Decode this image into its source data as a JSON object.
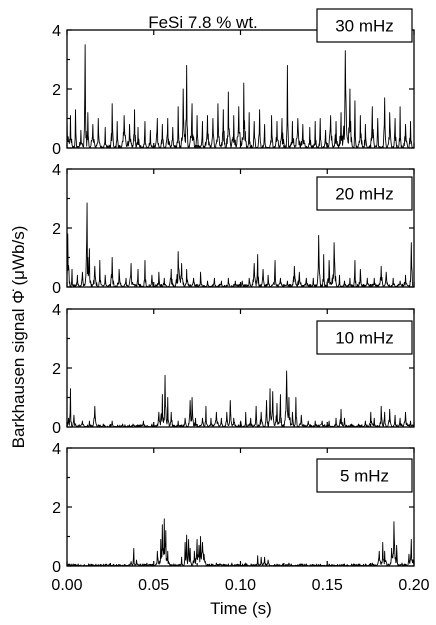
{
  "chart_data": {
    "type": "line",
    "title": "FeSi 7.8 % wt.",
    "xlabel": "Time (s)",
    "ylabel": "Barkhausen signal Φ̇ (μWb/s)",
    "xlim": [
      0.0,
      0.2
    ],
    "ylim": [
      0,
      4
    ],
    "x_ticks": [
      "0.00",
      "0.05",
      "0.10",
      "0.15",
      "0.20"
    ],
    "y_ticks": [
      "0",
      "2",
      "4"
    ],
    "grid": false,
    "panels": [
      {
        "label": "30 mHz",
        "bursts": [
          [
            0.0,
            1.0
          ],
          [
            0.002,
            1.1
          ],
          [
            0.005,
            1.3
          ],
          [
            0.008,
            0.6
          ],
          [
            0.0105,
            3.5
          ],
          [
            0.012,
            1.2
          ],
          [
            0.015,
            0.8
          ],
          [
            0.018,
            1.0
          ],
          [
            0.022,
            0.7
          ],
          [
            0.026,
            1.5
          ],
          [
            0.029,
            0.9
          ],
          [
            0.033,
            1.1
          ],
          [
            0.036,
            0.8
          ],
          [
            0.039,
            1.3
          ],
          [
            0.041,
            0.7
          ],
          [
            0.045,
            0.9
          ],
          [
            0.048,
            0.6
          ],
          [
            0.052,
            1.0
          ],
          [
            0.055,
            0.8
          ],
          [
            0.058,
            1.0
          ],
          [
            0.061,
            0.7
          ],
          [
            0.064,
            1.4
          ],
          [
            0.067,
            2.0
          ],
          [
            0.069,
            2.8
          ],
          [
            0.072,
            1.5
          ],
          [
            0.075,
            1.1
          ],
          [
            0.078,
            0.9
          ],
          [
            0.081,
            1.1
          ],
          [
            0.084,
            1.0
          ],
          [
            0.087,
            1.5
          ],
          [
            0.09,
            1.3
          ],
          [
            0.093,
            1.9
          ],
          [
            0.096,
            1.1
          ],
          [
            0.099,
            1.4
          ],
          [
            0.102,
            2.2
          ],
          [
            0.105,
            1.2
          ],
          [
            0.108,
            0.9
          ],
          [
            0.111,
            1.3
          ],
          [
            0.114,
            0.8
          ],
          [
            0.118,
            1.1
          ],
          [
            0.121,
            0.9
          ],
          [
            0.124,
            1.0
          ],
          [
            0.127,
            2.8
          ],
          [
            0.13,
            0.9
          ],
          [
            0.133,
            1.0
          ],
          [
            0.136,
            0.8
          ],
          [
            0.14,
            0.7
          ],
          [
            0.143,
            0.9
          ],
          [
            0.146,
            1.0
          ],
          [
            0.149,
            0.6
          ],
          [
            0.152,
            1.1
          ],
          [
            0.155,
            0.9
          ],
          [
            0.158,
            1.2
          ],
          [
            0.1605,
            3.3
          ],
          [
            0.163,
            2.0
          ],
          [
            0.166,
            1.6
          ],
          [
            0.169,
            1.1
          ],
          [
            0.172,
            0.8
          ],
          [
            0.176,
            1.4
          ],
          [
            0.179,
            1.0
          ],
          [
            0.183,
            1.7
          ],
          [
            0.186,
            1.2
          ],
          [
            0.189,
            1.0
          ],
          [
            0.192,
            1.4
          ],
          [
            0.195,
            0.8
          ],
          [
            0.198,
            0.9
          ]
        ]
      },
      {
        "label": "20 mHz",
        "bursts": [
          [
            0.0005,
            1.8
          ],
          [
            0.003,
            0.6
          ],
          [
            0.006,
            0.4
          ],
          [
            0.009,
            0.5
          ],
          [
            0.0115,
            2.85
          ],
          [
            0.013,
            1.3
          ],
          [
            0.016,
            0.7
          ],
          [
            0.019,
            0.9
          ],
          [
            0.022,
            0.4
          ],
          [
            0.026,
            1.0
          ],
          [
            0.03,
            0.6
          ],
          [
            0.034,
            0.3
          ],
          [
            0.037,
            0.8
          ],
          [
            0.041,
            0.6
          ],
          [
            0.045,
            0.9
          ],
          [
            0.049,
            0.4
          ],
          [
            0.053,
            0.5
          ],
          [
            0.056,
            0.3
          ],
          [
            0.06,
            0.6
          ],
          [
            0.064,
            1.2
          ],
          [
            0.066,
            0.8
          ],
          [
            0.069,
            0.6
          ],
          [
            0.073,
            0.3
          ],
          [
            0.077,
            0.5
          ],
          [
            0.081,
            0.2
          ],
          [
            0.085,
            0.3
          ],
          [
            0.089,
            0.2
          ],
          [
            0.093,
            0.3
          ],
          [
            0.097,
            0.2
          ],
          [
            0.101,
            0.2
          ],
          [
            0.105,
            0.3
          ],
          [
            0.108,
            0.8
          ],
          [
            0.11,
            1.1
          ],
          [
            0.113,
            0.6
          ],
          [
            0.116,
            0.4
          ],
          [
            0.12,
            0.9
          ],
          [
            0.123,
            0.3
          ],
          [
            0.127,
            0.2
          ],
          [
            0.131,
            0.7
          ],
          [
            0.134,
            0.5
          ],
          [
            0.138,
            0.3
          ],
          [
            0.142,
            0.3
          ],
          [
            0.145,
            1.75
          ],
          [
            0.148,
            1.1
          ],
          [
            0.151,
            0.9
          ],
          [
            0.154,
            1.5
          ],
          [
            0.157,
            0.4
          ],
          [
            0.16,
            0.2
          ],
          [
            0.163,
            0.3
          ],
          [
            0.166,
            0.9
          ],
          [
            0.169,
            0.6
          ],
          [
            0.173,
            0.3
          ],
          [
            0.177,
            0.3
          ],
          [
            0.181,
            0.7
          ],
          [
            0.184,
            0.5
          ],
          [
            0.188,
            0.3
          ],
          [
            0.192,
            0.2
          ],
          [
            0.195,
            0.4
          ],
          [
            0.1985,
            1.5
          ]
        ]
      },
      {
        "label": "10 mHz",
        "bursts": [
          [
            0.001,
            0.3
          ],
          [
            0.002,
            1.3
          ],
          [
            0.004,
            0.4
          ],
          [
            0.009,
            0.2
          ],
          [
            0.013,
            0.2
          ],
          [
            0.016,
            0.7
          ],
          [
            0.021,
            0.1
          ],
          [
            0.026,
            0.2
          ],
          [
            0.032,
            0.1
          ],
          [
            0.038,
            0.1
          ],
          [
            0.044,
            0.2
          ],
          [
            0.049,
            0.1
          ],
          [
            0.053,
            0.5
          ],
          [
            0.055,
            1.1
          ],
          [
            0.0565,
            1.75
          ],
          [
            0.058,
            1.0
          ],
          [
            0.06,
            0.5
          ],
          [
            0.064,
            0.2
          ],
          [
            0.068,
            0.3
          ],
          [
            0.071,
            0.9
          ],
          [
            0.072,
            1.0
          ],
          [
            0.074,
            0.3
          ],
          [
            0.078,
            0.3
          ],
          [
            0.08,
            0.7
          ],
          [
            0.083,
            0.3
          ],
          [
            0.086,
            0.5
          ],
          [
            0.089,
            0.3
          ],
          [
            0.092,
            0.5
          ],
          [
            0.094,
            0.9
          ],
          [
            0.096,
            0.3
          ],
          [
            0.1,
            0.2
          ],
          [
            0.103,
            0.5
          ],
          [
            0.106,
            0.3
          ],
          [
            0.109,
            0.7
          ],
          [
            0.112,
            0.5
          ],
          [
            0.115,
            0.9
          ],
          [
            0.117,
            1.3
          ],
          [
            0.1185,
            1.2
          ],
          [
            0.121,
            0.8
          ],
          [
            0.123,
            1.1
          ],
          [
            0.1265,
            1.9
          ],
          [
            0.128,
            1.0
          ],
          [
            0.13,
            0.5
          ],
          [
            0.132,
            1.0
          ],
          [
            0.135,
            0.4
          ],
          [
            0.139,
            0.2
          ],
          [
            0.143,
            0.2
          ],
          [
            0.147,
            0.2
          ],
          [
            0.151,
            0.2
          ],
          [
            0.155,
            0.3
          ],
          [
            0.158,
            0.6
          ],
          [
            0.16,
            0.3
          ],
          [
            0.164,
            0.1
          ],
          [
            0.168,
            0.1
          ],
          [
            0.172,
            0.2
          ],
          [
            0.175,
            0.5
          ],
          [
            0.177,
            0.3
          ],
          [
            0.181,
            0.7
          ],
          [
            0.183,
            0.5
          ],
          [
            0.186,
            0.6
          ],
          [
            0.189,
            0.4
          ],
          [
            0.192,
            0.3
          ],
          [
            0.195,
            0.5
          ],
          [
            0.198,
            0.2
          ]
        ]
      },
      {
        "label": "5 mHz",
        "bursts": [
          [
            0.015,
            0.05
          ],
          [
            0.03,
            0.05
          ],
          [
            0.037,
            0.15
          ],
          [
            0.0385,
            0.6
          ],
          [
            0.04,
            0.2
          ],
          [
            0.046,
            0.1
          ],
          [
            0.052,
            0.5
          ],
          [
            0.054,
            0.9
          ],
          [
            0.055,
            1.4
          ],
          [
            0.056,
            1.6
          ],
          [
            0.057,
            1.2
          ],
          [
            0.058,
            0.5
          ],
          [
            0.066,
            0.3
          ],
          [
            0.068,
            0.8
          ],
          [
            0.069,
            1.05
          ],
          [
            0.07,
            0.9
          ],
          [
            0.071,
            0.6
          ],
          [
            0.0735,
            0.5
          ],
          [
            0.075,
            0.9
          ],
          [
            0.076,
            0.7
          ],
          [
            0.077,
            1.0
          ],
          [
            0.078,
            0.8
          ],
          [
            0.079,
            0.4
          ],
          [
            0.086,
            0.1
          ],
          [
            0.095,
            0.1
          ],
          [
            0.103,
            0.1
          ],
          [
            0.11,
            0.35
          ],
          [
            0.112,
            0.3
          ],
          [
            0.114,
            0.3
          ],
          [
            0.116,
            0.2
          ],
          [
            0.128,
            0.1
          ],
          [
            0.145,
            0.05
          ],
          [
            0.165,
            0.05
          ],
          [
            0.176,
            0.1
          ],
          [
            0.18,
            0.5
          ],
          [
            0.182,
            0.8
          ],
          [
            0.183,
            0.5
          ],
          [
            0.187,
            0.6
          ],
          [
            0.1885,
            1.5
          ],
          [
            0.19,
            0.7
          ],
          [
            0.193,
            0.1
          ],
          [
            0.197,
            0.4
          ],
          [
            0.1985,
            0.9
          ],
          [
            0.2,
            0.3
          ]
        ]
      }
    ]
  }
}
